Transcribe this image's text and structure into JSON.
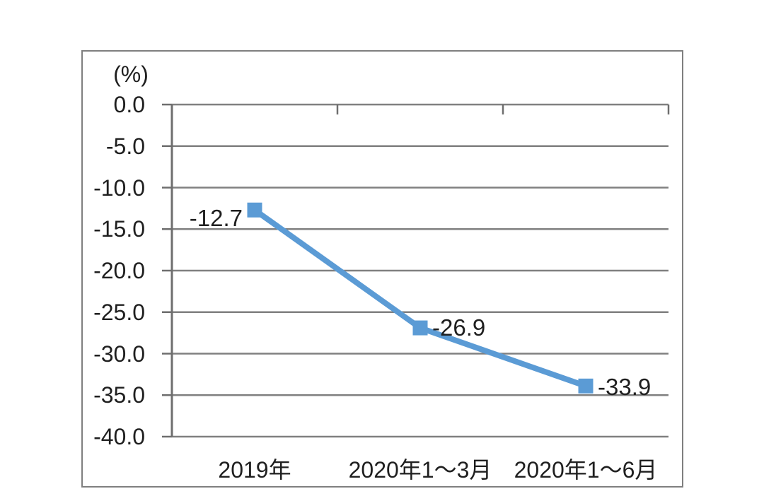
{
  "chart_data": {
    "type": "line",
    "title": "",
    "unit_label": "(%)",
    "categories": [
      "2019年",
      "2020年1～3月",
      "2020年1～6月"
    ],
    "values": [
      -12.7,
      -26.9,
      -33.9
    ],
    "data_labels": [
      "-12.7",
      "-26.9",
      "-33.9"
    ],
    "ytick_values": [
      0,
      -5,
      -10,
      -15,
      -20,
      -25,
      -30,
      -35,
      -40
    ],
    "ytick_labels": [
      "0.0",
      "-5.0",
      "-10.0",
      "-15.0",
      "-20.0",
      "-25.0",
      "-30.0",
      "-35.0",
      "-40.0"
    ],
    "ylim": [
      -40,
      0
    ],
    "grid": true,
    "legend": false,
    "marker": "square",
    "label_sides": [
      "left",
      "right",
      "right"
    ]
  },
  "colors": {
    "line": "#5b9bd5",
    "marker": "#5b9bd5",
    "gridline": "#808080",
    "axis": "#6e6e6e",
    "frame": "#7f7f7f",
    "text": "#1f1f1f",
    "background": "#ffffff"
  }
}
